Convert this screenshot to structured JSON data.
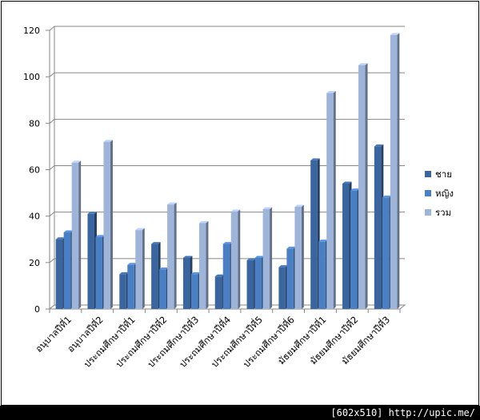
{
  "chart_data": {
    "type": "bar",
    "title": "",
    "xlabel": "",
    "ylabel": "",
    "ylim": [
      0,
      120
    ],
    "yticks": [
      0,
      20,
      40,
      60,
      80,
      100,
      120
    ],
    "grid": true,
    "legend_position": "right",
    "categories": [
      "อนุบาลปีที่1",
      "อนุบาลปีที่2",
      "ประถมศึกษาปีที่1",
      "ประถมศึกษาปีที่2",
      "ประถมศึกษาปีที่3",
      "ประถมศึกษาปีที่4",
      "ประถมศึกษาปีที่5",
      "ประถมศึกษาปีที่6",
      "มัธยมศึกษาปีที่1",
      "มัธยมศึกษาปีที่2",
      "มัธยมศึกษาปีที่3"
    ],
    "series": [
      {
        "name": "ชาย",
        "color": "#3b659f",
        "values": [
          30,
          41,
          15,
          28,
          22,
          14,
          21,
          18,
          64,
          54,
          70
        ]
      },
      {
        "name": "หญิง",
        "color": "#4a7fc3",
        "values": [
          33,
          31,
          19,
          17,
          15,
          28,
          22,
          26,
          29,
          51,
          48
        ]
      },
      {
        "name": "รวม",
        "color": "#9fb4d9",
        "values": [
          63,
          72,
          34,
          45,
          37,
          42,
          43,
          44,
          93,
          105,
          118
        ]
      }
    ]
  },
  "footer": {
    "text": "[602x510] http://upic.me/"
  }
}
